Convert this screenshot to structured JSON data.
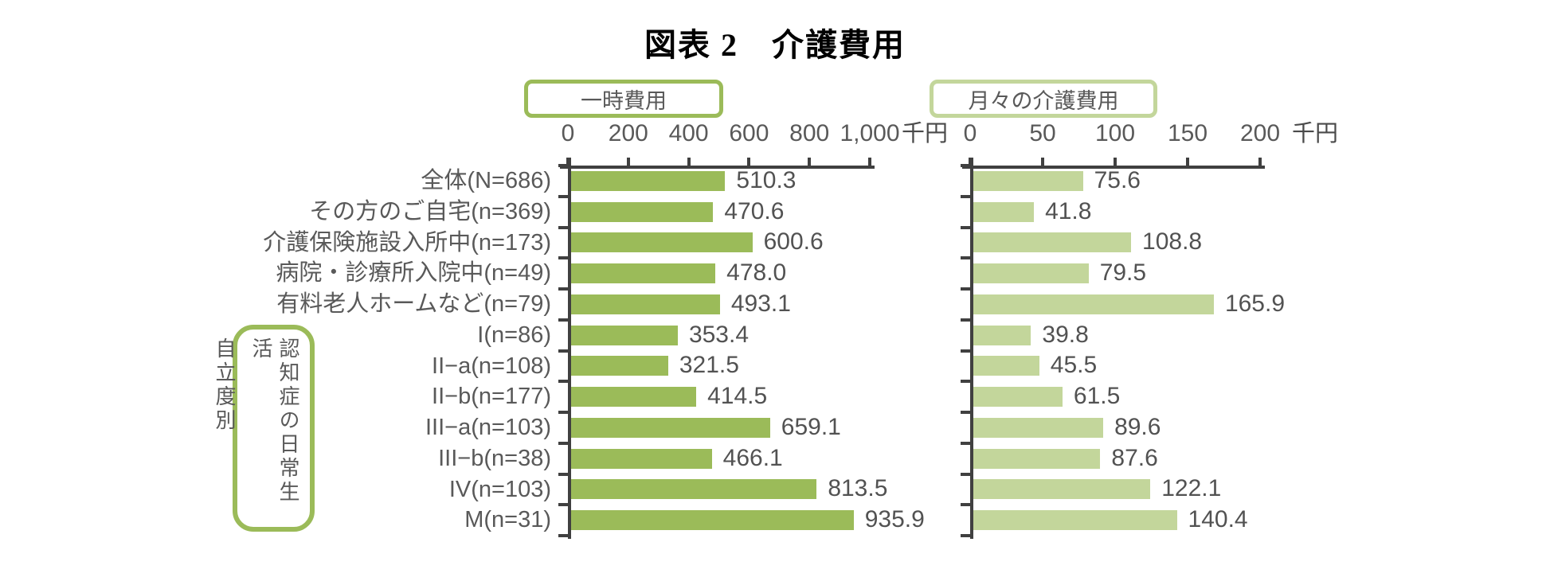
{
  "title": "図表 2　介護費用",
  "colors": {
    "bar_primary": "#9bbb59",
    "bar_secondary": "#c3d69b",
    "axis_line": "#404040",
    "label_text": "#595959",
    "title_text": "#000000",
    "background": "#ffffff"
  },
  "chart_data": {
    "type": "bar",
    "orientation": "horizontal",
    "title": "図表 2　介護費用",
    "categories": [
      "全体(N=686)",
      "その方のご自宅(n=369)",
      "介護保険施設入所中(n=173)",
      "病院・診療所入院中(n=49)",
      "有料老人ホームなど(n=79)",
      "I(n=86)",
      "II−a(n=108)",
      "II−b(n=177)",
      "III−a(n=103)",
      "III−b(n=38)",
      "IV(n=103)",
      "M(n=31)"
    ],
    "group_label": {
      "columns": [
        "認知症の日常生活",
        "自立度別"
      ],
      "combined": "認知症の日常生活自立度別",
      "applies_to_categories": [
        "I(n=86)",
        "II−a(n=108)",
        "II−b(n=177)",
        "III−a(n=103)",
        "III−b(n=38)",
        "IV(n=103)",
        "M(n=31)"
      ]
    },
    "series": [
      {
        "name": "一時費用",
        "color": "#9bbb59",
        "values": [
          510.3,
          470.6,
          600.6,
          478.0,
          493.1,
          353.4,
          321.5,
          414.5,
          659.1,
          466.1,
          813.5,
          935.9
        ],
        "value_labels": [
          "510.3",
          "470.6",
          "600.6",
          "478.0",
          "493.1",
          "353.4",
          "321.5",
          "414.5",
          "659.1",
          "466.1",
          "813.5",
          "935.9"
        ],
        "axis": {
          "min": 0,
          "max": 1000,
          "ticks": [
            0,
            200,
            400,
            600,
            800,
            1000
          ],
          "tick_labels": [
            "0",
            "200",
            "400",
            "600",
            "800",
            "1,000"
          ],
          "unit": "千円"
        }
      },
      {
        "name": "月々の介護費用",
        "color": "#c3d69b",
        "values": [
          75.6,
          41.8,
          108.8,
          79.5,
          165.9,
          39.8,
          45.5,
          61.5,
          89.6,
          87.6,
          122.1,
          140.4
        ],
        "value_labels": [
          "75.6",
          "41.8",
          "108.8",
          "79.5",
          "165.9",
          "39.8",
          "45.5",
          "61.5",
          "89.6",
          "87.6",
          "122.1",
          "140.4"
        ],
        "axis": {
          "min": 0,
          "max": 200,
          "ticks": [
            0,
            50,
            100,
            150,
            200
          ],
          "tick_labels": [
            "0",
            "50",
            "100",
            "150",
            "200"
          ],
          "unit": "千円"
        }
      }
    ],
    "legend_position": "top",
    "grid": false
  }
}
